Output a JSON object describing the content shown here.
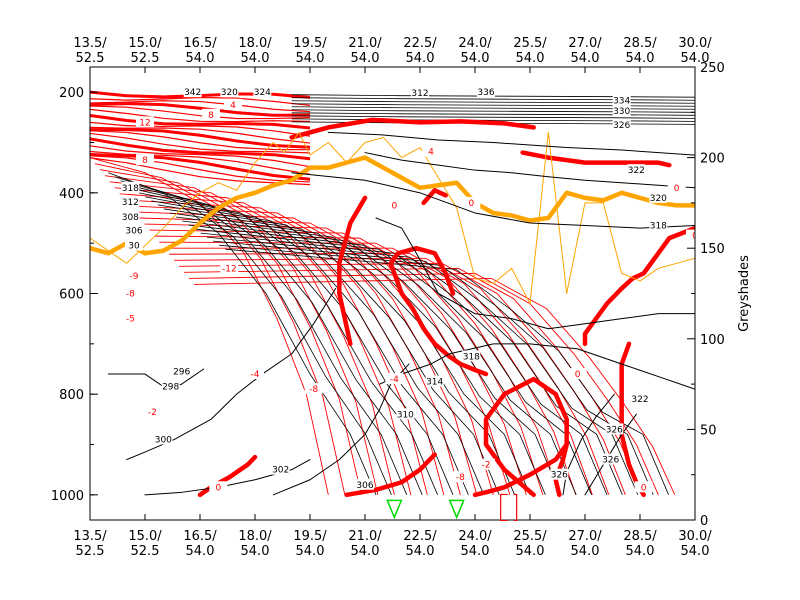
{
  "chart_data": {
    "type": "line",
    "title": "",
    "xlabel": "",
    "ylabel_left": "",
    "ylabel_right": "Greyshades",
    "x_ticks": [
      {
        "lon": 13.5,
        "top": "13.5/",
        "bottom": "52.5"
      },
      {
        "lon": 15.0,
        "top": "15.0/",
        "bottom": "52.5"
      },
      {
        "lon": 16.5,
        "top": "16.5/",
        "bottom": "54.0"
      },
      {
        "lon": 18.0,
        "top": "18.0/",
        "bottom": "54.0"
      },
      {
        "lon": 19.5,
        "top": "19.5/",
        "bottom": "54.0"
      },
      {
        "lon": 21.0,
        "top": "21.0/",
        "bottom": "54.0"
      },
      {
        "lon": 22.5,
        "top": "22.5/",
        "bottom": "54.0"
      },
      {
        "lon": 24.0,
        "top": "24.0/",
        "bottom": "54.0"
      },
      {
        "lon": 25.5,
        "top": "25.5/",
        "bottom": "54.0"
      },
      {
        "lon": 27.0,
        "top": "27.0/",
        "bottom": "54.0"
      },
      {
        "lon": 28.5,
        "top": "28.5/",
        "bottom": "54.0"
      },
      {
        "lon": 30.0,
        "top": "30.0/",
        "bottom": "54.0"
      }
    ],
    "xlim": [
      13.5,
      30.0
    ],
    "y_left_ticks": [
      200,
      400,
      600,
      800,
      1000
    ],
    "y_left_range": [
      150,
      1050
    ],
    "y_right_ticks": [
      0,
      50,
      100,
      150,
      200,
      250
    ],
    "y_right_range": [
      0,
      250
    ],
    "grid": false,
    "series": [
      {
        "color": "#ff0000",
        "kind": "zero-contour",
        "x": [
          16.5,
          16.8,
          17.3,
          17.8,
          18.0
        ],
        "y": [
          1000,
          985,
          965,
          940,
          925
        ]
      },
      {
        "color": "#ff0000",
        "kind": "zero-contour",
        "x": [
          21.0,
          20.6,
          20.3,
          20.3,
          20.6
        ],
        "y": [
          410,
          460,
          540,
          600,
          700
        ]
      },
      {
        "color": "#ff0000",
        "kind": "zero-contour",
        "x": [
          20.5,
          21.3,
          22.0,
          22.5,
          22.9
        ],
        "y": [
          1000,
          990,
          975,
          950,
          920
        ]
      },
      {
        "color": "#ff0000",
        "kind": "zero-contour",
        "x": [
          24.0,
          24.3,
          24.8,
          25.5,
          26.2,
          26.5
        ],
        "y": [
          1000,
          995,
          985,
          960,
          930,
          900
        ]
      },
      {
        "color": "#ff0000",
        "kind": "zero-contour",
        "x": [
          25.6,
          25.2,
          24.8,
          24.3,
          24.3,
          24.8,
          25.6,
          26.2,
          26.5,
          26.5,
          26.4,
          26.2,
          26.3
        ],
        "y": [
          1000,
          975,
          950,
          900,
          850,
          800,
          770,
          800,
          850,
          900,
          930,
          970,
          1000
        ]
      },
      {
        "color": "#ff0000",
        "kind": "zero-contour",
        "x": [
          24.3,
          24.0,
          23.6,
          23.3,
          22.9,
          22.6,
          22.3,
          22.0,
          21.8,
          21.7,
          21.9,
          22.4,
          22.9,
          23.2,
          23.4
        ],
        "y": [
          760,
          752,
          740,
          725,
          700,
          670,
          630,
          600,
          560,
          540,
          520,
          510,
          520,
          560,
          600
        ]
      },
      {
        "color": "#ff0000",
        "kind": "zero-contour",
        "x": [
          27.0,
          27.0,
          27.2,
          27.6,
          28.0,
          28.3,
          28.6,
          29.3,
          30.0
        ],
        "y": [
          700,
          680,
          660,
          620,
          590,
          570,
          560,
          490,
          470
        ]
      },
      {
        "color": "#ff0000",
        "kind": "zero-contour",
        "x": [
          28.6,
          28.4,
          28.2,
          28.0,
          28.0,
          28.0,
          28.2
        ],
        "y": [
          1000,
          975,
          940,
          880,
          800,
          740,
          700
        ]
      },
      {
        "color": "#ff0000",
        "kind": "zero-contour",
        "x": [
          19.0,
          20.0,
          21.2,
          22.5,
          23.6,
          24.8,
          25.6
        ],
        "y": [
          290,
          270,
          255,
          260,
          258,
          262,
          270
        ]
      },
      {
        "color": "#ff0000",
        "kind": "zero-contour",
        "x": [
          22.6,
          22.9,
          23.2
        ],
        "y": [
          420,
          395,
          405
        ]
      },
      {
        "color": "#ff0000",
        "kind": "zero-contour",
        "x": [
          25.3,
          26.0,
          27.0,
          28.0,
          29.0,
          29.3
        ],
        "y": [
          320,
          330,
          340,
          340,
          340,
          345
        ]
      },
      {
        "color": "#ffa500",
        "kind": "thick-line",
        "x": [
          13.5,
          14.0,
          14.5,
          15.0,
          15.5,
          16.0,
          16.5,
          17.0,
          17.5,
          18.0,
          18.5,
          19.0,
          19.5,
          20.0,
          20.5,
          21.0,
          21.5,
          22.0,
          22.5,
          23.0,
          23.5,
          24.0,
          24.5,
          25.0,
          25.5,
          26.0,
          26.5,
          27.0,
          27.5,
          28.0,
          28.5,
          29.0,
          29.5,
          30.0
        ],
        "y": [
          510,
          520,
          500,
          520,
          515,
          495,
          460,
          430,
          410,
          400,
          385,
          375,
          350,
          350,
          340,
          330,
          350,
          370,
          390,
          385,
          380,
          420,
          440,
          445,
          455,
          450,
          400,
          410,
          415,
          400,
          410,
          420,
          425,
          425
        ]
      },
      {
        "color": "#ffa500",
        "kind": "thin-line",
        "x": [
          13.5,
          14.5,
          15.5,
          16.0,
          16.5,
          17.0,
          17.5,
          18.0,
          18.5,
          18.8,
          19.2,
          19.5,
          20.0,
          20.5,
          21.0,
          21.5,
          22.0,
          22.5,
          23.0,
          23.5,
          24.0,
          24.5,
          25.0,
          25.5,
          26.0,
          26.5,
          27.0,
          27.5,
          28.0,
          28.5,
          29.0,
          29.5,
          30.0
        ],
        "y": [
          490,
          540,
          470,
          430,
          400,
          380,
          395,
          340,
          300,
          320,
          280,
          325,
          300,
          340,
          300,
          290,
          330,
          310,
          370,
          430,
          570,
          580,
          550,
          620,
          280,
          600,
          420,
          420,
          560,
          575,
          550,
          540,
          530
        ]
      },
      {
        "color": "#000000",
        "kind": "contour",
        "x": [
          15.0,
          16.0,
          17.0,
          18.0,
          19.0,
          19.5
        ],
        "y": [
          1000,
          995,
          985,
          970,
          950,
          930
        ]
      },
      {
        "color": "#000000",
        "kind": "contour",
        "x": [
          14.5,
          15.0,
          15.8,
          16.8,
          17.5,
          18.2,
          19.0,
          19.6,
          20.2
        ],
        "y": [
          930,
          915,
          890,
          850,
          800,
          760,
          720,
          660,
          590
        ]
      },
      {
        "color": "#000000",
        "kind": "contour",
        "x": [
          14.0,
          15.0,
          15.6,
          16.0,
          16.6
        ],
        "y": [
          760,
          760,
          790,
          780,
          750
        ]
      },
      {
        "color": "#000000",
        "kind": "contour",
        "x": [
          18.5,
          19.5,
          20.3,
          21.0,
          21.4,
          21.7,
          22.2
        ],
        "y": [
          1000,
          970,
          930,
          880,
          830,
          780,
          740
        ]
      },
      {
        "color": "#000000",
        "kind": "contour",
        "x": [
          21.4,
          22.0,
          22.8,
          23.3,
          23.9,
          24.5,
          25.5,
          26.8,
          28.0,
          29.2,
          30.0
        ],
        "y": [
          780,
          760,
          740,
          720,
          710,
          700,
          700,
          710,
          740,
          770,
          790
        ]
      },
      {
        "color": "#000000",
        "kind": "contour",
        "x": [
          26.4,
          26.5,
          26.9,
          27.3,
          27.8
        ],
        "y": [
          1000,
          955,
          890,
          845,
          800
        ]
      },
      {
        "color": "#000000",
        "kind": "contour",
        "x": [
          27.0,
          27.5,
          28.0,
          28.4
        ],
        "y": [
          1000,
          940,
          880,
          840
        ]
      },
      {
        "color": "#000000",
        "kind": "contour",
        "x": [
          19.0,
          21.0,
          22.5,
          24.0,
          25.5,
          27.0,
          28.5,
          30.0
        ],
        "y": [
          360,
          375,
          400,
          440,
          460,
          465,
          470,
          465
        ]
      },
      {
        "color": "#000000",
        "kind": "contour",
        "x": [
          21.3,
          22.0,
          22.4,
          23.0,
          24.0,
          25.0,
          26.0,
          27.0,
          28.0,
          29.0,
          30.0
        ],
        "y": [
          450,
          470,
          520,
          600,
          640,
          650,
          670,
          660,
          650,
          640,
          640
        ]
      },
      {
        "color": "#000000",
        "kind": "contour",
        "x": [
          21.0,
          22.0,
          23.0,
          24.0,
          25.0,
          26.0,
          27.0,
          28.0,
          29.0,
          30.0
        ],
        "y": [
          320,
          335,
          345,
          355,
          360,
          368,
          375,
          380,
          385,
          390
        ]
      },
      {
        "color": "#000000",
        "kind": "contour",
        "x": [
          20.0,
          21.5,
          23.0,
          24.5,
          25.5,
          26.5,
          28.0,
          30.0
        ],
        "y": [
          280,
          285,
          295,
          300,
          305,
          310,
          315,
          325
        ]
      }
    ],
    "contour_labels": [
      {
        "text": "302",
        "x": 18.7,
        "y": 950,
        "color": "#000000"
      },
      {
        "text": "300",
        "x": 15.5,
        "y": 890,
        "color": "#000000"
      },
      {
        "text": "298",
        "x": 15.7,
        "y": 785,
        "color": "#000000"
      },
      {
        "text": "296",
        "x": 16.0,
        "y": 755,
        "color": "#000000"
      },
      {
        "text": "306",
        "x": 21.0,
        "y": 980,
        "color": "#000000"
      },
      {
        "text": "310",
        "x": 22.1,
        "y": 840,
        "color": "#000000"
      },
      {
        "text": "314",
        "x": 22.9,
        "y": 775,
        "color": "#000000"
      },
      {
        "text": "318",
        "x": 23.9,
        "y": 725,
        "color": "#000000"
      },
      {
        "text": "322",
        "x": 28.5,
        "y": 810,
        "color": "#000000"
      },
      {
        "text": "326",
        "x": 26.3,
        "y": 960,
        "color": "#000000"
      },
      {
        "text": "326",
        "x": 27.7,
        "y": 930,
        "color": "#000000"
      },
      {
        "text": "326",
        "x": 27.8,
        "y": 870,
        "color": "#000000"
      },
      {
        "text": "318",
        "x": 29.0,
        "y": 465,
        "color": "#000000"
      },
      {
        "text": "320",
        "x": 29.0,
        "y": 410,
        "color": "#000000"
      },
      {
        "text": "322",
        "x": 28.4,
        "y": 355,
        "color": "#000000"
      },
      {
        "text": "326",
        "x": 28.0,
        "y": 265,
        "color": "#000000"
      },
      {
        "text": "330",
        "x": 28.0,
        "y": 237,
        "color": "#000000"
      },
      {
        "text": "334",
        "x": 28.0,
        "y": 217,
        "color": "#000000"
      },
      {
        "text": "336",
        "x": 24.3,
        "y": 200,
        "color": "#000000"
      },
      {
        "text": "312",
        "x": 22.5,
        "y": 202,
        "color": "#000000"
      },
      {
        "text": "324",
        "x": 18.2,
        "y": 200,
        "color": "#000000"
      },
      {
        "text": "320",
        "x": 17.3,
        "y": 200,
        "color": "#000000"
      },
      {
        "text": "342",
        "x": 16.3,
        "y": 200,
        "color": "#000000"
      },
      {
        "text": "318",
        "x": 14.6,
        "y": 390,
        "color": "#000000"
      },
      {
        "text": "312",
        "x": 14.6,
        "y": 418,
        "color": "#000000"
      },
      {
        "text": "308",
        "x": 14.6,
        "y": 448,
        "color": "#000000"
      },
      {
        "text": "306",
        "x": 14.7,
        "y": 475,
        "color": "#000000"
      },
      {
        "text": "30",
        "x": 14.7,
        "y": 505,
        "color": "#000000"
      },
      {
        "text": "-2",
        "x": 15.2,
        "y": 835,
        "color": "#ff0000"
      },
      {
        "text": "-5",
        "x": 14.6,
        "y": 650,
        "color": "#ff0000"
      },
      {
        "text": "-8",
        "x": 14.6,
        "y": 600,
        "color": "#ff0000"
      },
      {
        "text": "-9",
        "x": 14.7,
        "y": 565,
        "color": "#ff0000"
      },
      {
        "text": "-4",
        "x": 18.0,
        "y": 760,
        "color": "#ff0000"
      },
      {
        "text": "-8",
        "x": 19.6,
        "y": 790,
        "color": "#ff0000"
      },
      {
        "text": "-12",
        "x": 17.3,
        "y": 550,
        "color": "#ff0000"
      },
      {
        "text": "-2",
        "x": 24.3,
        "y": 940,
        "color": "#ff0000"
      },
      {
        "text": "-8",
        "x": 23.6,
        "y": 965,
        "color": "#ff0000"
      },
      {
        "text": "-4",
        "x": 21.8,
        "y": 770,
        "color": "#ff0000"
      },
      {
        "text": "0",
        "x": 17.0,
        "y": 985,
        "color": "#ff0000"
      },
      {
        "text": "0",
        "x": 21.8,
        "y": 425,
        "color": "#ff0000"
      },
      {
        "text": "0",
        "x": 23.9,
        "y": 420,
        "color": "#ff0000"
      },
      {
        "text": "0",
        "x": 26.8,
        "y": 760,
        "color": "#ff0000"
      },
      {
        "text": "0",
        "x": 28.6,
        "y": 985,
        "color": "#ff0000"
      },
      {
        "text": "0",
        "x": 30.0,
        "y": 485,
        "color": "#ff0000"
      },
      {
        "text": "0",
        "x": 29.5,
        "y": 390,
        "color": "#ff0000"
      },
      {
        "text": "8",
        "x": 16.8,
        "y": 245,
        "color": "#ff0000"
      },
      {
        "text": "4",
        "x": 17.4,
        "y": 225,
        "color": "#ff0000"
      },
      {
        "text": "4",
        "x": 22.8,
        "y": 318,
        "color": "#ff0000"
      },
      {
        "text": "8",
        "x": 15.0,
        "y": 335,
        "color": "#ff0000"
      },
      {
        "text": "12",
        "x": 15.0,
        "y": 260,
        "color": "#ff0000"
      }
    ],
    "markers": [
      {
        "type": "triangle-down",
        "color": "#00dd00",
        "x": 21.8,
        "y": 1027
      },
      {
        "type": "triangle-down",
        "color": "#00dd00",
        "x": 23.5,
        "y": 1027
      },
      {
        "type": "bracket",
        "color": "#ff0000",
        "x": 25.0,
        "y": 1027
      }
    ]
  }
}
